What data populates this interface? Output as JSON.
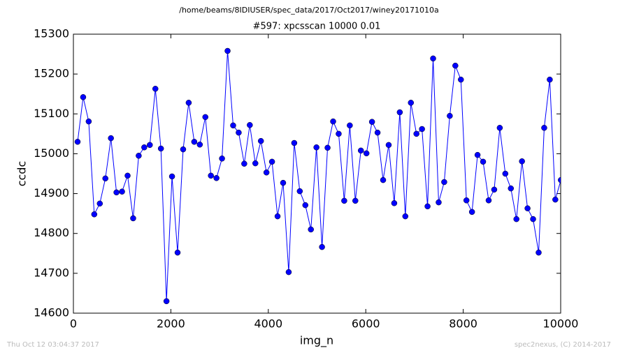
{
  "chart_data": {
    "type": "line",
    "subtitle": "/home/beams/8IDIUSER/spec_data/2017/Oct2017/winey20171010a",
    "title": "#597: xpcsscan 10000 0.01",
    "x_label": "img_n",
    "y_label": "ccdc",
    "footer_left": "Thu Oct 12 03:04:37 2017",
    "footer_right": "spec2nexus, (C) 2014-2017",
    "color": "#0000ff",
    "marker": "circle",
    "grid": false,
    "xlim": [
      0,
      10000
    ],
    "xticks": [
      0,
      2000,
      4000,
      6000,
      8000,
      10000
    ],
    "ylim": [
      14600,
      15300
    ],
    "yticks": [
      14600,
      14700,
      14800,
      14900,
      15000,
      15100,
      15200,
      15300
    ],
    "x": [
      86,
      200,
      314,
      428,
      542,
      656,
      770,
      884,
      998,
      1112,
      1226,
      1340,
      1454,
      1568,
      1682,
      1796,
      1910,
      2024,
      2138,
      2252,
      2366,
      2480,
      2594,
      2708,
      2822,
      2936,
      3050,
      3164,
      3278,
      3392,
      3506,
      3620,
      3734,
      3848,
      3962,
      4076,
      4190,
      4304,
      4418,
      4532,
      4646,
      4760,
      4874,
      4988,
      5102,
      5216,
      5330,
      5444,
      5558,
      5672,
      5786,
      5900,
      6014,
      6128,
      6242,
      6356,
      6470,
      6584,
      6698,
      6812,
      6926,
      7040,
      7154,
      7268,
      7382,
      7496,
      7610,
      7724,
      7838,
      7952,
      8066,
      8180,
      8294,
      8408,
      8522,
      8636,
      8750,
      8864,
      8978,
      9092,
      9206,
      9320,
      9434,
      9548,
      9662,
      9776,
      9890,
      10004
    ],
    "values": [
      15030,
      15142,
      15081,
      14848,
      14875,
      14938,
      15039,
      14903,
      14905,
      14945,
      14838,
      14995,
      15016,
      15022,
      15163,
      15013,
      14630,
      14943,
      14752,
      15011,
      15128,
      15030,
      15023,
      15092,
      14945,
      14939,
      14988,
      15258,
      15071,
      15053,
      14975,
      15072,
      14976,
      15032,
      14953,
      14980,
      14843,
      14927,
      14703,
      15027,
      14906,
      14871,
      14810,
      15016,
      14766,
      15015,
      15081,
      15050,
      14882,
      15071,
      14882,
      15008,
      15001,
      15080,
      15053,
      14934,
      15022,
      14876,
      15104,
      14843,
      15128,
      15050,
      15062,
      14868,
      15239,
      14878,
      14929,
      15095,
      15221,
      15186,
      14883,
      14854,
      14997,
      14980,
      14883,
      14910,
      15065,
      14950,
      14913,
      14836,
      14981,
      14863,
      14836,
      14752,
      15065,
      15186,
      14885,
      14934
    ]
  }
}
